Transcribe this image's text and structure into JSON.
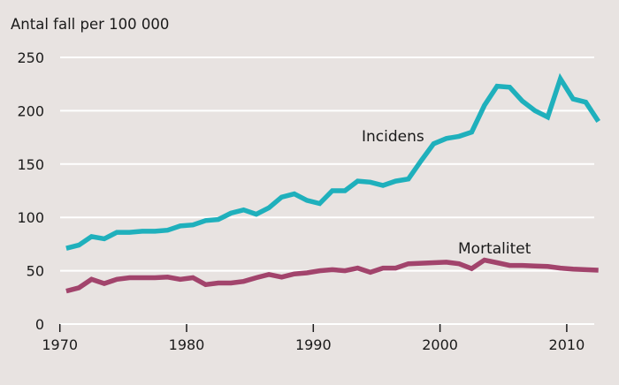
{
  "chart_data": {
    "type": "line",
    "title": "",
    "ylabel": "Antal fall per 100 000",
    "xlabel": "",
    "ylim": [
      0,
      250
    ],
    "xlim": [
      1970,
      2012.3
    ],
    "yticks": [
      0,
      50,
      100,
      150,
      200,
      250
    ],
    "ytick_labels": [
      "0",
      "50",
      "100",
      "150",
      "200",
      "250"
    ],
    "xticks": [
      1970,
      1980,
      1990,
      2000,
      2010
    ],
    "xtick_labels": [
      "1970",
      "1980",
      "1990",
      "2000",
      "2010"
    ],
    "grid": "horizontal",
    "legend": "inline labels",
    "x": [
      1970,
      1971,
      1972,
      1973,
      1974,
      1975,
      1976,
      1977,
      1978,
      1979,
      1980,
      1981,
      1982,
      1983,
      1984,
      1985,
      1986,
      1987,
      1988,
      1989,
      1990,
      1991,
      1992,
      1993,
      1994,
      1995,
      1996,
      1997,
      1998,
      1999,
      2000,
      2001,
      2002,
      2003,
      2004,
      2005,
      2006,
      2007,
      2008,
      2009,
      2010,
      2011,
      2012
    ],
    "series": [
      {
        "name": "Incidens",
        "color": "#1fb0bc",
        "label_position": "above-line-near-2000",
        "values": [
          71,
          74,
          82,
          80,
          86,
          86,
          87,
          87,
          88,
          92,
          93,
          97,
          98,
          104,
          107,
          103,
          109,
          119,
          122,
          116,
          113,
          125,
          125,
          134,
          133,
          130,
          134,
          136,
          153,
          169,
          174,
          176,
          180,
          205,
          223,
          222,
          209,
          200,
          194,
          230,
          211,
          208,
          190
        ]
      },
      {
        "name": "Mortalitet",
        "color": "#a2446c",
        "label_position": "above-line-near-2005",
        "values": [
          31,
          34,
          42,
          38,
          42,
          43.5,
          43.5,
          43.5,
          44,
          42,
          43.5,
          37,
          38.5,
          38.5,
          40,
          43.5,
          46.5,
          44,
          47,
          48,
          50,
          51,
          50,
          52.5,
          48.5,
          52.5,
          52.5,
          56.5,
          57,
          57.5,
          58,
          56.5,
          52,
          60,
          57.5,
          55,
          55,
          54.5,
          54,
          52.5,
          51.5,
          51,
          50.5
        ]
      }
    ]
  }
}
